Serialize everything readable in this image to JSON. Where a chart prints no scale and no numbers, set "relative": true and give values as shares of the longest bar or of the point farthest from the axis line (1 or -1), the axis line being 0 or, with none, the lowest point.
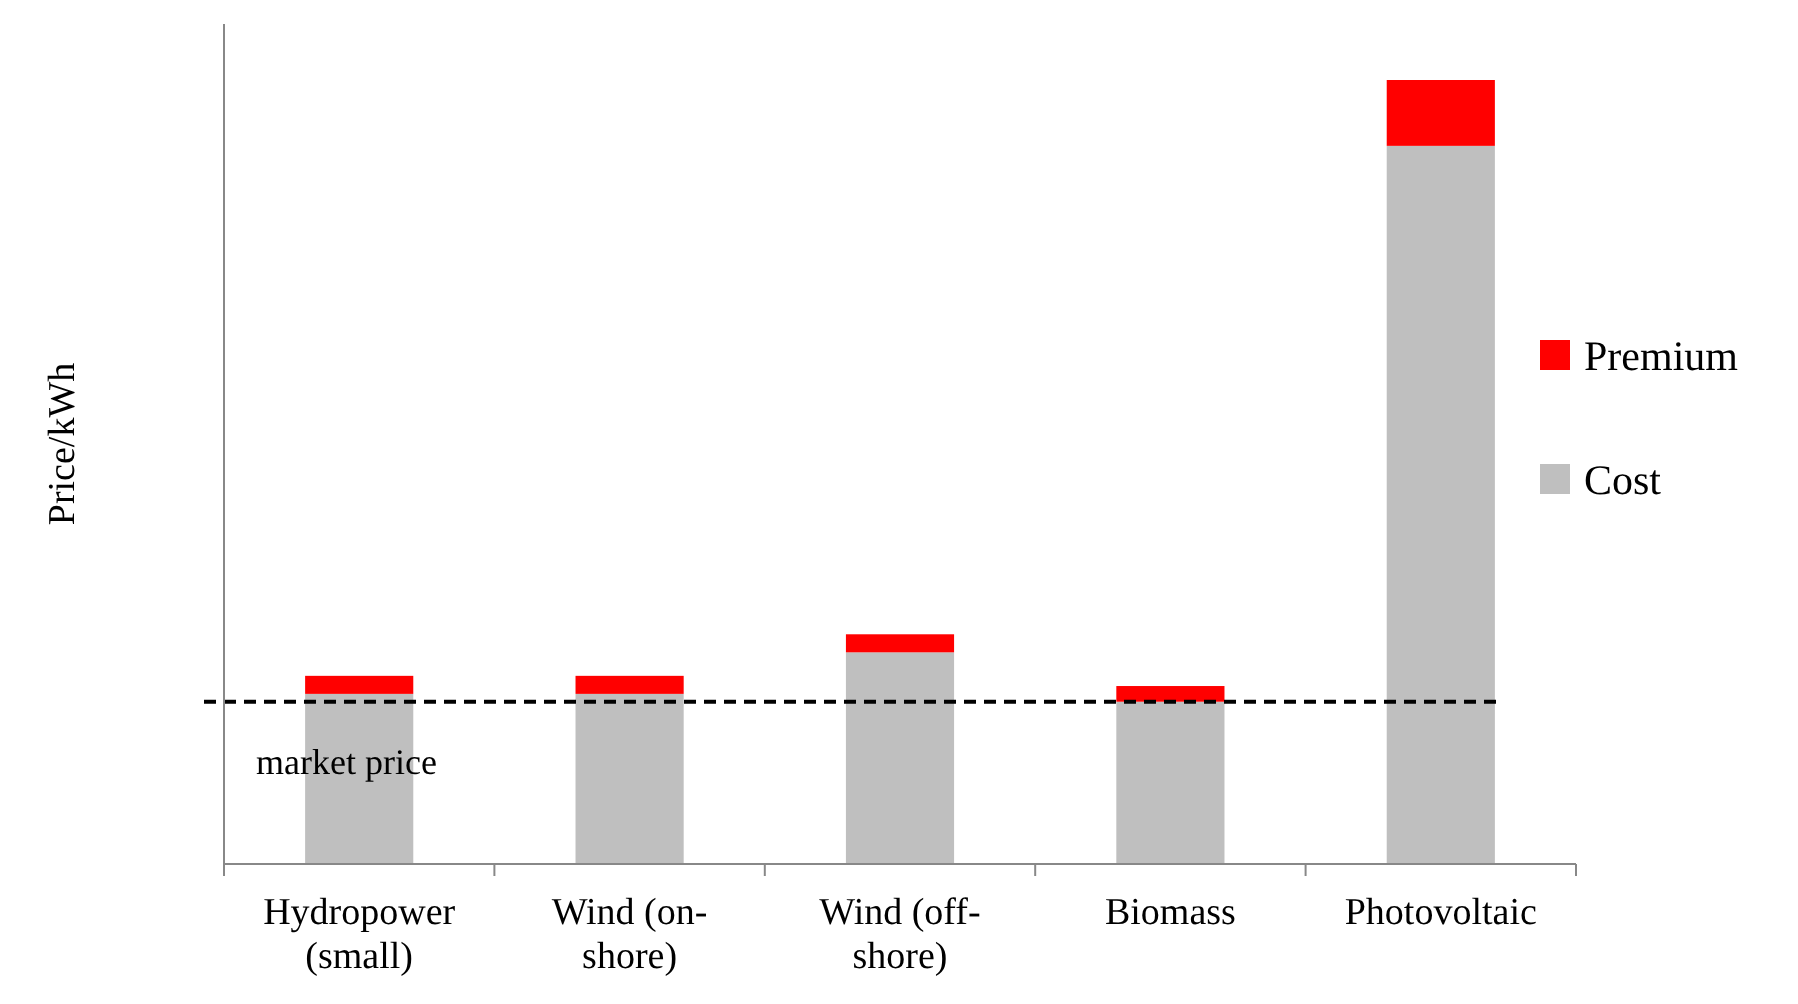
{
  "chart_data": {
    "type": "bar",
    "stacked": true,
    "relative": true,
    "ylabel": "Price/kWh",
    "categories": [
      "Hydropower (small)",
      "Wind (on-shore)",
      "Wind (off-shore)",
      "Biomass",
      "Photovoltaic"
    ],
    "series": [
      {
        "name": "Cost",
        "color": "#bfbfbf",
        "values": [
          0.217,
          0.217,
          0.27,
          0.207,
          0.916
        ]
      },
      {
        "name": "Premium",
        "color": "#ff0000",
        "values": [
          0.023,
          0.023,
          0.023,
          0.02,
          0.084
        ]
      }
    ],
    "ref_lines": [
      {
        "axis": "y",
        "value": 0.207,
        "label": "market price",
        "color": "#000000",
        "line_style": "dashed"
      }
    ],
    "legend": "right",
    "grid": false
  }
}
